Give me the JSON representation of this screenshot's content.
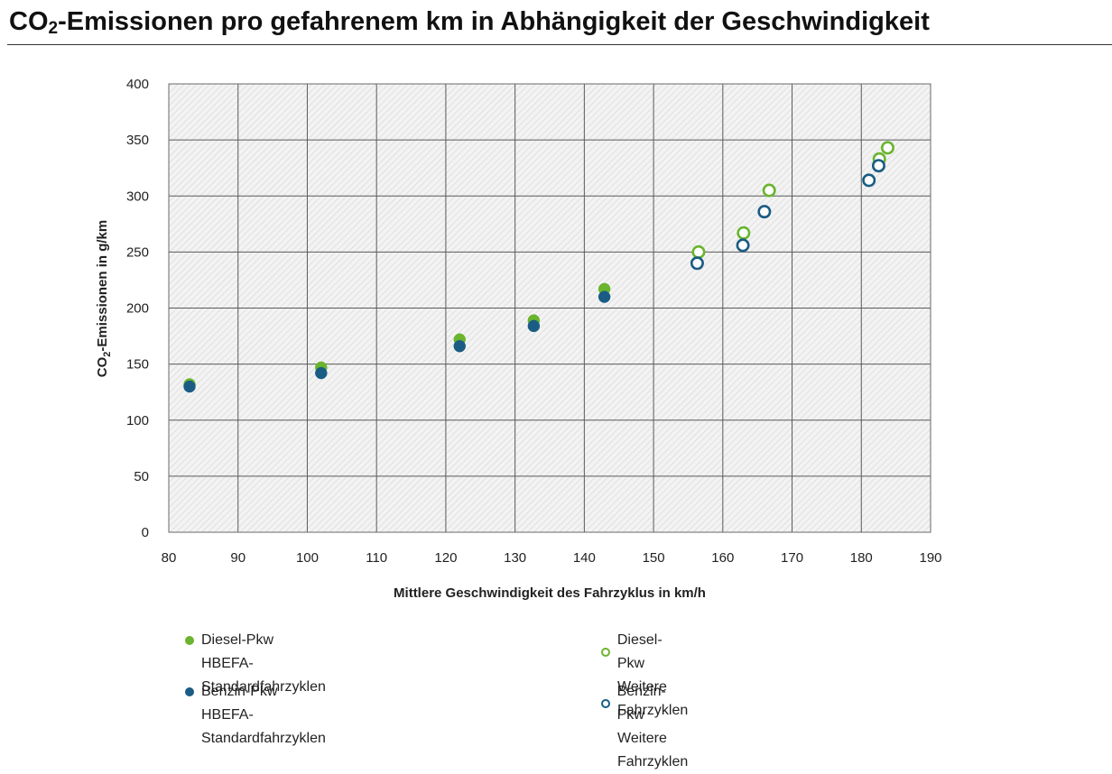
{
  "page": {
    "title_prefix": "CO",
    "title_sub": "2",
    "title_rest": "-Emissionen pro gefahrenem km in Abhängigkeit der Geschwindigkeit"
  },
  "chart_data": {
    "type": "scatter",
    "title": "CO2-Emissionen pro gefahrenem km in Abhängigkeit der Geschwindigkeit",
    "xlabel": "Mittlere Geschwindigkeit des Fahrzyklus in km/h",
    "ylabel_prefix": "CO",
    "ylabel_sub": "2",
    "ylabel_rest": "-Emissionen in g/km",
    "xlim": [
      80,
      190
    ],
    "ylim": [
      0,
      400
    ],
    "xticks": [
      80,
      90,
      100,
      110,
      120,
      130,
      140,
      150,
      160,
      170,
      180,
      190
    ],
    "yticks": [
      0,
      50,
      100,
      150,
      200,
      250,
      300,
      350,
      400
    ],
    "grid": true,
    "series": [
      {
        "name": "Diesel-Pkw HBEFA-Standardfahrzyklen",
        "label_line1": "Diesel-Pkw",
        "label_line2": "HBEFA-Standardfahrzyklen",
        "color": "#6ab42e",
        "filled": true,
        "points": [
          {
            "x": 83,
            "y": 132
          },
          {
            "x": 102,
            "y": 147
          },
          {
            "x": 122,
            "y": 172
          },
          {
            "x": 132.7,
            "y": 189
          },
          {
            "x": 142.9,
            "y": 217
          }
        ]
      },
      {
        "name": "Benzin-Pkw HBEFA-Standardfahrzyklen",
        "label_line1": "Benzin-Pkw",
        "label_line2": "HBEFA-Standardfahrzyklen",
        "color": "#1a5c84",
        "filled": true,
        "points": [
          {
            "x": 83,
            "y": 130
          },
          {
            "x": 102,
            "y": 142
          },
          {
            "x": 122,
            "y": 166
          },
          {
            "x": 132.7,
            "y": 184
          },
          {
            "x": 142.9,
            "y": 210
          }
        ]
      },
      {
        "name": "Diesel-Pkw Weitere Fahrzyklen",
        "label_line1": "Diesel-Pkw",
        "label_line2": "Weitere Fahrzyklen",
        "color": "#6ab42e",
        "filled": false,
        "points": [
          {
            "x": 156.5,
            "y": 250
          },
          {
            "x": 163,
            "y": 267
          },
          {
            "x": 166.7,
            "y": 305
          },
          {
            "x": 182.6,
            "y": 333
          },
          {
            "x": 183.8,
            "y": 343
          }
        ]
      },
      {
        "name": "Benzin-Pkw Weitere Fahrzyklen",
        "label_line1": "Benzin-Pkw",
        "label_line2": "Weitere Fahrzyklen",
        "color": "#1a5c84",
        "filled": false,
        "points": [
          {
            "x": 156.3,
            "y": 240
          },
          {
            "x": 162.9,
            "y": 256
          },
          {
            "x": 166,
            "y": 286
          },
          {
            "x": 181.1,
            "y": 314
          },
          {
            "x": 182.5,
            "y": 327
          }
        ]
      }
    ]
  }
}
